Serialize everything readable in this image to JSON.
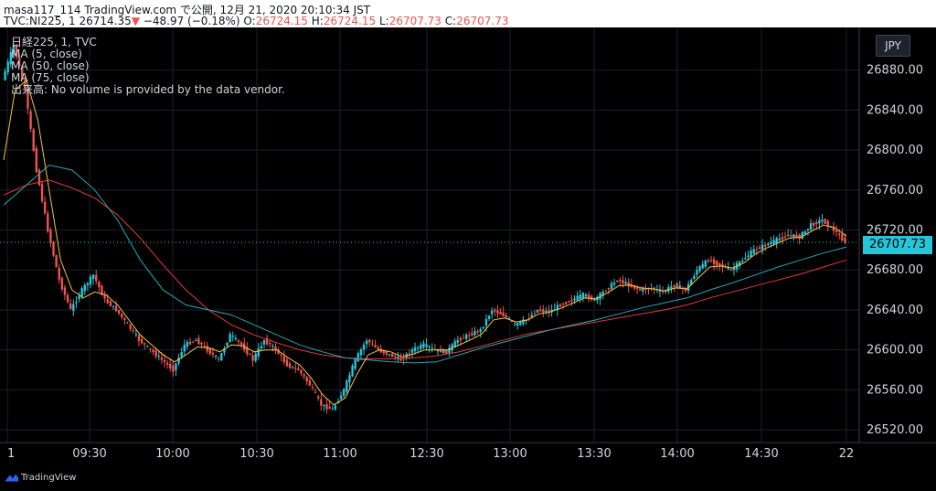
{
  "header": {
    "line1": "masa117_114 TradingView.com で公開, 12月 21, 2020 20:10:34 JST",
    "symbol": "TVC:NI225, 1",
    "price": "26714.35",
    "change_arrow": "▼",
    "change": "−48.97 (−0.18%)",
    "o_label": "O:",
    "o": "26724.15",
    "h_label": "H:",
    "h": "26724.15",
    "l_label": "L:",
    "l": "26707.73",
    "c_label": "C:",
    "c": "26707.73"
  },
  "legend": {
    "title": "日経225, 1, TVC",
    "ma5": "MA (5, close)",
    "ma50": "MA (50, close)",
    "ma75": "MA (75, close)",
    "volume": "出来高: No volume is provided by the data vendor."
  },
  "currency": "JPY",
  "last_price_tag": "26707.73",
  "branding": "TradingView",
  "colors": {
    "background": "#000000",
    "up": "#26c6da",
    "down": "#ef5350",
    "ma5": "#f5c242",
    "ma50": "#26a6b8",
    "ma75": "#e53935",
    "grid": "#1c2030",
    "axis_text": "#d1d4dc"
  },
  "chart_data": {
    "type": "candlestick",
    "title": "日経225, 1, TVC",
    "ylim": [
      26510,
      26920
    ],
    "y_ticks": [
      26520,
      26560,
      26600,
      26640,
      26680,
      26720,
      26760,
      26800,
      26840,
      26880
    ],
    "x_ticks": [
      "1",
      "09:30",
      "10:00",
      "10:30",
      "11:00",
      "12:30",
      "13:00",
      "13:30",
      "14:00",
      "14:30",
      "22"
    ],
    "price_path": [
      [
        0,
        26870
      ],
      [
        2,
        26905
      ],
      [
        4,
        26860
      ],
      [
        6,
        26780
      ],
      [
        8,
        26720
      ],
      [
        10,
        26670
      ],
      [
        12,
        26640
      ],
      [
        14,
        26660
      ],
      [
        16,
        26675
      ],
      [
        18,
        26650
      ],
      [
        20,
        26640
      ],
      [
        22,
        26625
      ],
      [
        24,
        26610
      ],
      [
        26,
        26600
      ],
      [
        28,
        26590
      ],
      [
        30,
        26580
      ],
      [
        32,
        26605
      ],
      [
        34,
        26610
      ],
      [
        36,
        26600
      ],
      [
        38,
        26590
      ],
      [
        40,
        26615
      ],
      [
        42,
        26605
      ],
      [
        44,
        26590
      ],
      [
        46,
        26610
      ],
      [
        48,
        26600
      ],
      [
        50,
        26585
      ],
      [
        52,
        26580
      ],
      [
        54,
        26565
      ],
      [
        56,
        26545
      ],
      [
        58,
        26540
      ],
      [
        60,
        26560
      ],
      [
        62,
        26590
      ],
      [
        64,
        26610
      ],
      [
        66,
        26600
      ],
      [
        68,
        26595
      ],
      [
        70,
        26590
      ],
      [
        72,
        26600
      ],
      [
        74,
        26605
      ],
      [
        76,
        26600
      ],
      [
        78,
        26598
      ],
      [
        80,
        26610
      ],
      [
        82,
        26615
      ],
      [
        84,
        26620
      ],
      [
        86,
        26640
      ],
      [
        88,
        26635
      ],
      [
        90,
        26625
      ],
      [
        92,
        26630
      ],
      [
        94,
        26640
      ],
      [
        96,
        26638
      ],
      [
        98,
        26645
      ],
      [
        100,
        26650
      ],
      [
        102,
        26655
      ],
      [
        104,
        26650
      ],
      [
        106,
        26660
      ],
      [
        108,
        26670
      ],
      [
        110,
        26665
      ],
      [
        112,
        26660
      ],
      [
        114,
        26662
      ],
      [
        116,
        26658
      ],
      [
        118,
        26665
      ],
      [
        120,
        26660
      ],
      [
        122,
        26680
      ],
      [
        124,
        26690
      ],
      [
        126,
        26685
      ],
      [
        128,
        26680
      ],
      [
        130,
        26690
      ],
      [
        132,
        26700
      ],
      [
        134,
        26705
      ],
      [
        136,
        26710
      ],
      [
        138,
        26715
      ],
      [
        140,
        26713
      ],
      [
        142,
        26725
      ],
      [
        144,
        26730
      ],
      [
        146,
        26720
      ],
      [
        148,
        26708
      ]
    ],
    "ma5_path": [
      [
        0,
        26790
      ],
      [
        2,
        26860
      ],
      [
        4,
        26870
      ],
      [
        6,
        26830
      ],
      [
        8,
        26760
      ],
      [
        10,
        26690
      ],
      [
        12,
        26660
      ],
      [
        14,
        26652
      ],
      [
        16,
        26658
      ],
      [
        18,
        26655
      ],
      [
        20,
        26645
      ],
      [
        22,
        26630
      ],
      [
        24,
        26615
      ],
      [
        26,
        26605
      ],
      [
        28,
        26595
      ],
      [
        30,
        26588
      ],
      [
        32,
        26595
      ],
      [
        34,
        26603
      ],
      [
        36,
        26602
      ],
      [
        38,
        26598
      ],
      [
        40,
        26605
      ],
      [
        42,
        26604
      ],
      [
        44,
        26598
      ],
      [
        46,
        26600
      ],
      [
        48,
        26600
      ],
      [
        50,
        26592
      ],
      [
        52,
        26585
      ],
      [
        54,
        26572
      ],
      [
        56,
        26555
      ],
      [
        58,
        26545
      ],
      [
        60,
        26552
      ],
      [
        62,
        26575
      ],
      [
        64,
        26595
      ],
      [
        66,
        26600
      ],
      [
        68,
        26598
      ],
      [
        70,
        26593
      ],
      [
        72,
        26596
      ],
      [
        74,
        26600
      ],
      [
        76,
        26600
      ],
      [
        78,
        26600
      ],
      [
        80,
        26605
      ],
      [
        82,
        26610
      ],
      [
        84,
        26616
      ],
      [
        86,
        26630
      ],
      [
        88,
        26632
      ],
      [
        90,
        26628
      ],
      [
        92,
        26630
      ],
      [
        94,
        26636
      ],
      [
        96,
        26638
      ],
      [
        98,
        26642
      ],
      [
        100,
        26647
      ],
      [
        102,
        26652
      ],
      [
        104,
        26651
      ],
      [
        106,
        26657
      ],
      [
        108,
        26664
      ],
      [
        110,
        26665
      ],
      [
        112,
        26662
      ],
      [
        114,
        26661
      ],
      [
        116,
        26659
      ],
      [
        118,
        26662
      ],
      [
        120,
        26661
      ],
      [
        122,
        26672
      ],
      [
        124,
        26683
      ],
      [
        126,
        26684
      ],
      [
        128,
        26682
      ],
      [
        130,
        26687
      ],
      [
        132,
        26696
      ],
      [
        134,
        26702
      ],
      [
        136,
        26707
      ],
      [
        138,
        26712
      ],
      [
        140,
        26713
      ],
      [
        142,
        26719
      ],
      [
        144,
        26725
      ],
      [
        146,
        26722
      ],
      [
        148,
        26714
      ]
    ],
    "ma50_path": [
      [
        0,
        26745
      ],
      [
        4,
        26765
      ],
      [
        8,
        26785
      ],
      [
        12,
        26780
      ],
      [
        16,
        26760
      ],
      [
        20,
        26730
      ],
      [
        24,
        26690
      ],
      [
        28,
        26660
      ],
      [
        32,
        26645
      ],
      [
        36,
        26640
      ],
      [
        40,
        26635
      ],
      [
        44,
        26625
      ],
      [
        48,
        26615
      ],
      [
        52,
        26605
      ],
      [
        56,
        26598
      ],
      [
        60,
        26592
      ],
      [
        64,
        26590
      ],
      [
        68,
        26588
      ],
      [
        72,
        26587
      ],
      [
        76,
        26588
      ],
      [
        80,
        26595
      ],
      [
        84,
        26602
      ],
      [
        88,
        26608
      ],
      [
        92,
        26614
      ],
      [
        96,
        26620
      ],
      [
        100,
        26625
      ],
      [
        104,
        26630
      ],
      [
        108,
        26636
      ],
      [
        112,
        26642
      ],
      [
        116,
        26647
      ],
      [
        120,
        26652
      ],
      [
        124,
        26660
      ],
      [
        128,
        26667
      ],
      [
        132,
        26675
      ],
      [
        136,
        26683
      ],
      [
        140,
        26690
      ],
      [
        144,
        26697
      ],
      [
        148,
        26703
      ]
    ],
    "ma75_path": [
      [
        0,
        26755
      ],
      [
        4,
        26765
      ],
      [
        8,
        26770
      ],
      [
        12,
        26762
      ],
      [
        16,
        26752
      ],
      [
        20,
        26735
      ],
      [
        24,
        26712
      ],
      [
        28,
        26685
      ],
      [
        32,
        26660
      ],
      [
        36,
        26640
      ],
      [
        40,
        26625
      ],
      [
        44,
        26615
      ],
      [
        48,
        26607
      ],
      [
        52,
        26600
      ],
      [
        56,
        26595
      ],
      [
        60,
        26592
      ],
      [
        64,
        26591
      ],
      [
        68,
        26591
      ],
      [
        72,
        26592
      ],
      [
        76,
        26594
      ],
      [
        80,
        26598
      ],
      [
        84,
        26604
      ],
      [
        88,
        26610
      ],
      [
        92,
        26616
      ],
      [
        96,
        26620
      ],
      [
        100,
        26624
      ],
      [
        104,
        26628
      ],
      [
        108,
        26632
      ],
      [
        112,
        26636
      ],
      [
        116,
        26640
      ],
      [
        120,
        26645
      ],
      [
        124,
        26652
      ],
      [
        128,
        26658
      ],
      [
        132,
        26664
      ],
      [
        136,
        26670
      ],
      [
        140,
        26676
      ],
      [
        144,
        26683
      ],
      [
        148,
        26690
      ]
    ]
  }
}
